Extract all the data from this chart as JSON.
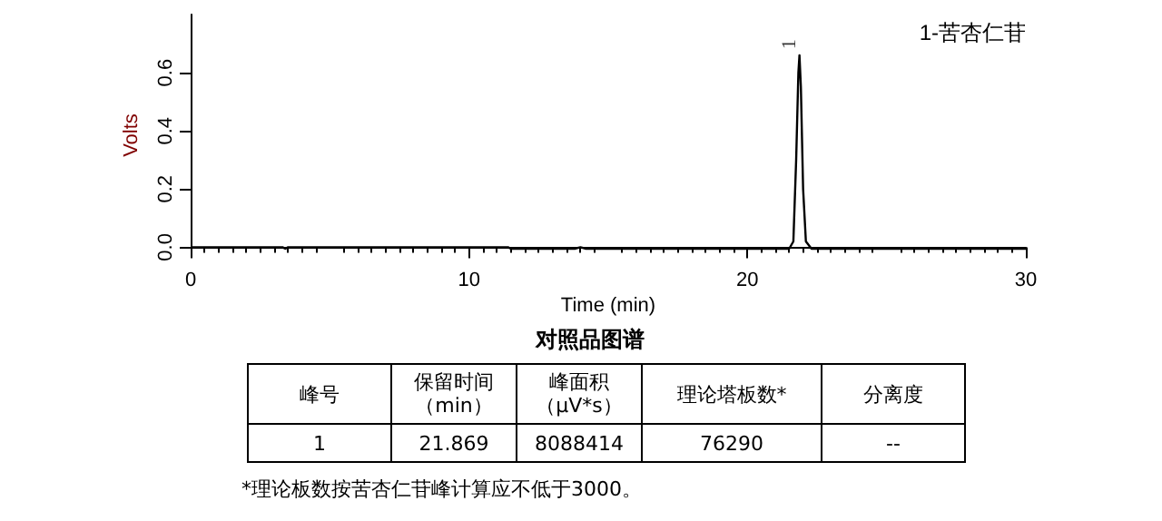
{
  "chart_data": {
    "type": "line",
    "title": "对照品图谱",
    "xlabel": "Time (min)",
    "ylabel": "Volts",
    "x": [
      0,
      3.3,
      3.4,
      3.5,
      11.4,
      11.5,
      13.8,
      14,
      14.2,
      21.5,
      21.65,
      21.75,
      21.83,
      21.869,
      21.92,
      22.0,
      22.1,
      22.3,
      30
    ],
    "series": [
      {
        "color": "#000000",
        "values": [
          0,
          0,
          -0.005,
          0,
          0,
          -0.005,
          -0.005,
          0,
          -0.005,
          -0.005,
          0.02,
          0.3,
          0.6,
          0.66,
          0.55,
          0.2,
          0.02,
          -0.005,
          -0.005
        ]
      }
    ],
    "xlim": [
      0,
      30
    ],
    "xticks": [
      0,
      10,
      20,
      30
    ],
    "ylim": [
      -0.03,
      0.8
    ],
    "yticks": [
      {
        "value": 0,
        "label": "0.0"
      },
      {
        "value": 0.2,
        "label": "0.2"
      },
      {
        "value": 0.4,
        "label": "0.4"
      },
      {
        "value": 0.6,
        "label": "0.6"
      }
    ],
    "grid": false,
    "marker": "none",
    "line_style": "solid",
    "annotations": [
      "1-苦杏仁苷",
      {
        "text": "1",
        "x": 21.869,
        "y": 0.66
      },
      "峰号",
      "保留时间（min）",
      "峰面积（μV*s）",
      "理论塔板数*",
      "分离度",
      "1",
      "21.869",
      "8088414",
      "76290",
      "--",
      "*理论板数按苦杏仁苷峰计算应不低于3000。"
    ]
  }
}
